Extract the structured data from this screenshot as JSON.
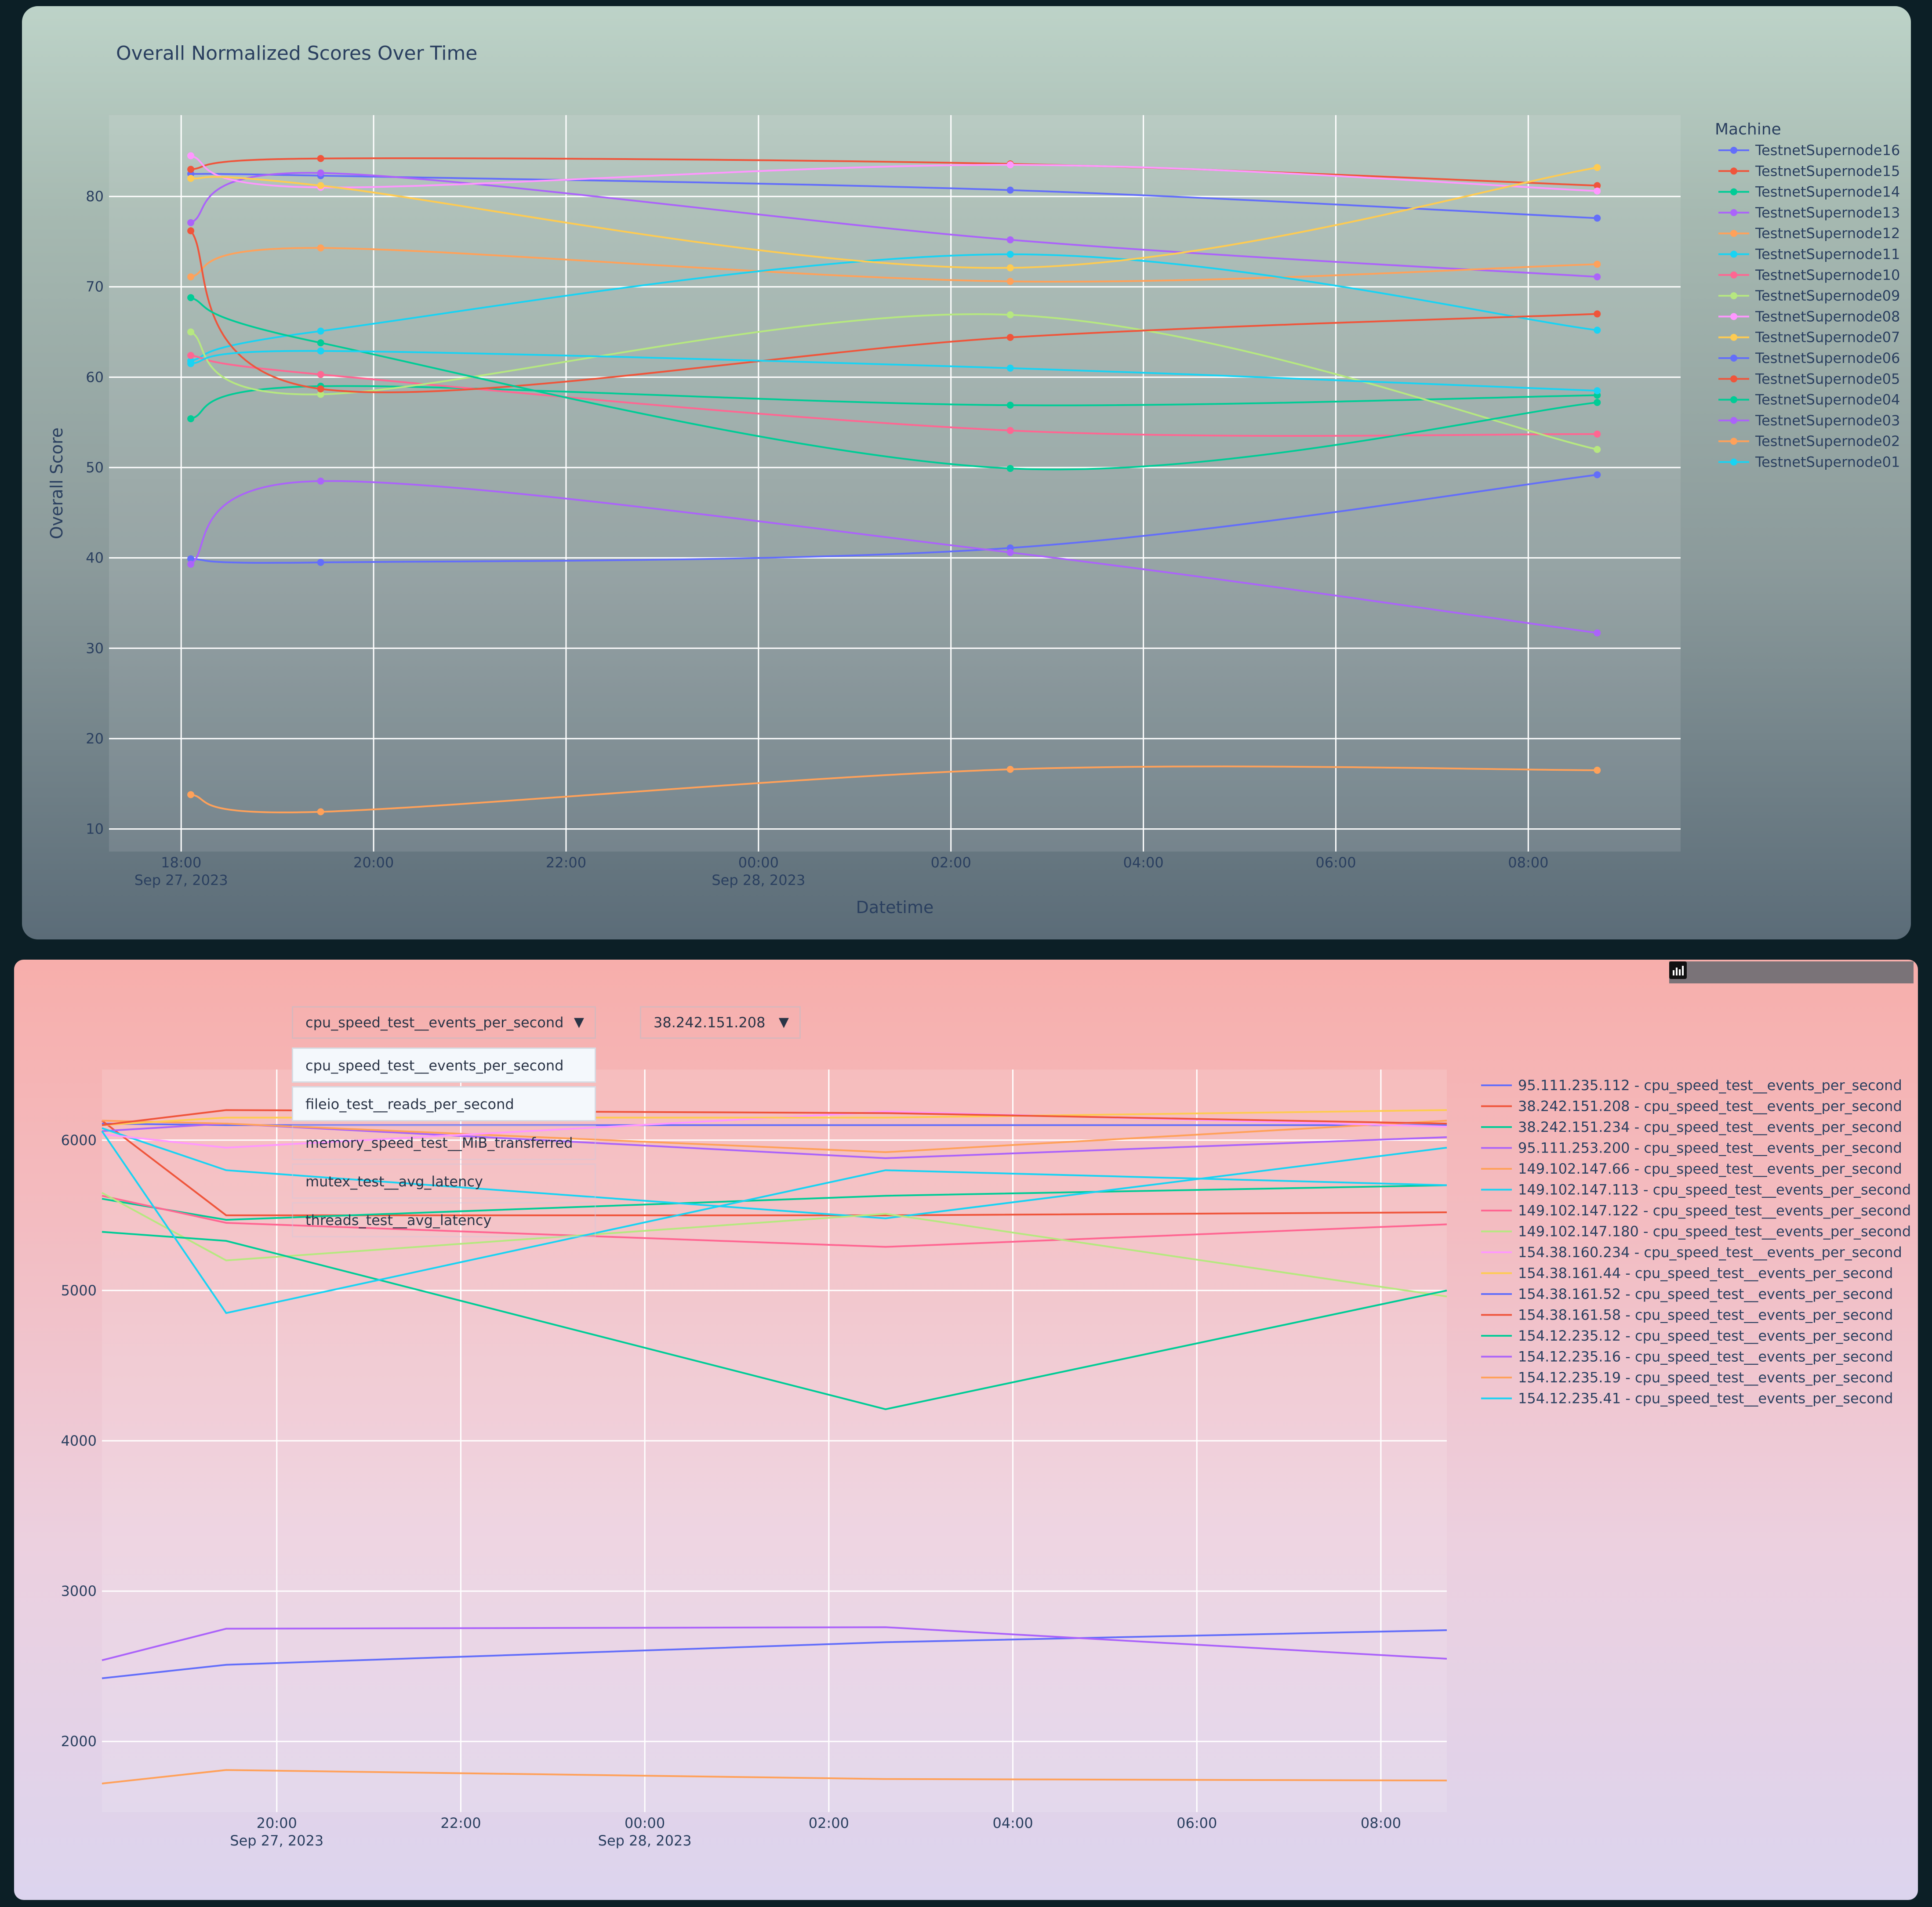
{
  "top_chart": {
    "legend_title": "Machine",
    "chart_data": {
      "type": "line",
      "title": "Overall Normalized Scores Over Time",
      "xlabel": "Datetime",
      "ylabel": "Overall Score",
      "x_ticks": [
        {
          "label": "18:00",
          "sub": "Sep 27, 2023",
          "t": "2023-09-27 18:00"
        },
        {
          "label": "20:00",
          "sub": "",
          "t": "2023-09-27 20:00"
        },
        {
          "label": "22:00",
          "sub": "",
          "t": "2023-09-27 22:00"
        },
        {
          "label": "00:00",
          "sub": "Sep 28, 2023",
          "t": "2023-09-28 00:00"
        },
        {
          "label": "02:00",
          "sub": "",
          "t": "2023-09-28 02:00"
        },
        {
          "label": "04:00",
          "sub": "",
          "t": "2023-09-28 04:00"
        },
        {
          "label": "06:00",
          "sub": "",
          "t": "2023-09-28 06:00"
        },
        {
          "label": "08:00",
          "sub": "",
          "t": "2023-09-28 08:00"
        }
      ],
      "y_ticks": [
        10,
        20,
        30,
        40,
        50,
        60,
        70,
        80
      ],
      "xlim": [
        "2023-09-27 17:15",
        "2023-09-28 09:35"
      ],
      "ylim": [
        7.5,
        89
      ],
      "x": [
        "2023-09-27 18:06",
        "2023-09-27 19:27",
        "2023-09-28 02:37",
        "2023-09-28 08:43"
      ],
      "grid": true,
      "legend_position": "right",
      "series": [
        {
          "name": "TestnetSupernode16",
          "color": "#636efa",
          "values": [
            82.5,
            82.3,
            80.7,
            77.6
          ]
        },
        {
          "name": "TestnetSupernode15",
          "color": "#ef553b",
          "values": [
            83.0,
            84.2,
            83.6,
            81.2
          ]
        },
        {
          "name": "TestnetSupernode14",
          "color": "#00cc96",
          "values": [
            55.4,
            59.0,
            56.9,
            58.0
          ]
        },
        {
          "name": "TestnetSupernode13",
          "color": "#ab63fa",
          "values": [
            77.1,
            82.6,
            75.2,
            71.1
          ]
        },
        {
          "name": "TestnetSupernode12",
          "color": "#ffa15a",
          "values": [
            71.1,
            74.3,
            70.6,
            72.5
          ]
        },
        {
          "name": "TestnetSupernode11",
          "color": "#19d3f3",
          "values": [
            61.8,
            65.1,
            73.6,
            65.2
          ]
        },
        {
          "name": "TestnetSupernode10",
          "color": "#ff6692",
          "values": [
            62.4,
            60.3,
            54.1,
            53.7
          ]
        },
        {
          "name": "TestnetSupernode09",
          "color": "#b6e880",
          "values": [
            65.0,
            58.1,
            66.9,
            52.0
          ]
        },
        {
          "name": "TestnetSupernode08",
          "color": "#ff97ff",
          "values": [
            84.5,
            81.0,
            83.5,
            80.6
          ]
        },
        {
          "name": "TestnetSupernode07",
          "color": "#fecb52",
          "values": [
            82.0,
            81.2,
            72.1,
            83.2
          ]
        },
        {
          "name": "TestnetSupernode06",
          "color": "#636efa",
          "values": [
            39.9,
            39.5,
            41.1,
            49.2
          ]
        },
        {
          "name": "TestnetSupernode05",
          "color": "#ef553b",
          "values": [
            76.2,
            58.7,
            64.4,
            67.0
          ]
        },
        {
          "name": "TestnetSupernode04",
          "color": "#00cc96",
          "values": [
            68.8,
            63.8,
            49.9,
            57.2
          ]
        },
        {
          "name": "TestnetSupernode03",
          "color": "#ab63fa",
          "values": [
            39.3,
            48.5,
            40.6,
            31.7
          ]
        },
        {
          "name": "TestnetSupernode02",
          "color": "#ffa15a",
          "values": [
            13.8,
            11.9,
            16.6,
            16.5
          ]
        },
        {
          "name": "TestnetSupernode01",
          "color": "#19d3f3",
          "values": [
            61.5,
            62.9,
            61.0,
            58.5
          ]
        }
      ]
    }
  },
  "bottom_chart": {
    "metric_dropdown": {
      "selected": "cpu_speed_test__events_per_second",
      "arrow": "▼"
    },
    "ip_dropdown": {
      "selected": "38.242.151.208",
      "arrow": "▼"
    },
    "metric_options": [
      "cpu_speed_test__events_per_second",
      "fileio_test__reads_per_second",
      "memory_speed_test__MiB_transferred",
      "mutex_test__avg_latency",
      "threads_test__avg_latency"
    ],
    "modebar_icons": [
      "camera-icon",
      "zoom-icon",
      "pan-icon",
      "zoom-in-icon",
      "zoom-out-icon",
      "autoscale-icon",
      "home-icon",
      "plotly-logo-icon"
    ],
    "chart_data": {
      "type": "line",
      "title": "",
      "xlabel": "",
      "ylabel": "",
      "x_ticks": [
        {
          "label": "20:00",
          "sub": "Sep 27, 2023",
          "t": "2023-09-27 20:00"
        },
        {
          "label": "22:00",
          "sub": "",
          "t": "2023-09-27 22:00"
        },
        {
          "label": "00:00",
          "sub": "Sep 28, 2023",
          "t": "2023-09-28 00:00"
        },
        {
          "label": "02:00",
          "sub": "",
          "t": "2023-09-28 02:00"
        },
        {
          "label": "04:00",
          "sub": "",
          "t": "2023-09-28 04:00"
        },
        {
          "label": "06:00",
          "sub": "",
          "t": "2023-09-28 06:00"
        },
        {
          "label": "08:00",
          "sub": "",
          "t": "2023-09-28 08:00"
        }
      ],
      "y_ticks": [
        2000,
        3000,
        4000,
        5000,
        6000
      ],
      "xlim": [
        "2023-09-27 18:06",
        "2023-09-28 08:43"
      ],
      "ylim": [
        1530,
        6470
      ],
      "x": [
        "2023-09-27 18:06",
        "2023-09-27 19:27",
        "2023-09-28 02:37",
        "2023-09-28 08:43"
      ],
      "grid": true,
      "legend_position": "right",
      "series": [
        {
          "name": "95.111.235.112 - cpu_speed_test__events_per_second",
          "color": "#636efa",
          "values": [
            6110,
            6100,
            6100,
            6100
          ]
        },
        {
          "name": "38.242.151.208 - cpu_speed_test__events_per_second",
          "color": "#ef553b",
          "values": [
            6130,
            5500,
            5500,
            5520
          ]
        },
        {
          "name": "38.242.151.234 - cpu_speed_test__events_per_second",
          "color": "#00cc96",
          "values": [
            5610,
            5470,
            5630,
            5700
          ]
        },
        {
          "name": "95.111.253.200 - cpu_speed_test__events_per_second",
          "color": "#ab63fa",
          "values": [
            6060,
            6110,
            5880,
            6020
          ]
        },
        {
          "name": "149.102.147.66 - cpu_speed_test__events_per_second",
          "color": "#ffa15a",
          "values": [
            6130,
            6110,
            5920,
            6130
          ]
        },
        {
          "name": "149.102.147.113 - cpu_speed_test__events_per_second",
          "color": "#19d3f3",
          "values": [
            6080,
            5800,
            5480,
            5950
          ]
        },
        {
          "name": "149.102.147.122 - cpu_speed_test__events_per_second",
          "color": "#ff6692",
          "values": [
            5630,
            5450,
            5290,
            5440
          ]
        },
        {
          "name": "149.102.147.180 - cpu_speed_test__events_per_second",
          "color": "#b6e880",
          "values": [
            5650,
            5200,
            5510,
            4960
          ]
        },
        {
          "name": "154.38.160.234 - cpu_speed_test__events_per_second",
          "color": "#ff97ff",
          "values": [
            6040,
            5950,
            6190,
            6090
          ]
        },
        {
          "name": "154.38.161.44 - cpu_speed_test__events_per_second",
          "color": "#fecb52",
          "values": [
            6100,
            6150,
            6150,
            6200
          ]
        },
        {
          "name": "154.38.161.52 - cpu_speed_test__events_per_second",
          "color": "#636efa",
          "values": [
            2420,
            2510,
            2660,
            2740
          ]
        },
        {
          "name": "154.38.161.58 - cpu_speed_test__events_per_second",
          "color": "#ef553b",
          "values": [
            6100,
            6200,
            6180,
            6110
          ]
        },
        {
          "name": "154.12.235.12 - cpu_speed_test__events_per_second",
          "color": "#00cc96",
          "values": [
            5390,
            5330,
            4210,
            5000
          ]
        },
        {
          "name": "154.12.235.16 - cpu_speed_test__events_per_second",
          "color": "#ab63fa",
          "values": [
            2540,
            2750,
            2760,
            2550
          ]
        },
        {
          "name": "154.12.235.19 - cpu_speed_test__events_per_second",
          "color": "#ffa15a",
          "values": [
            1720,
            1810,
            1750,
            1740
          ]
        },
        {
          "name": "154.12.235.41 - cpu_speed_test__events_per_second",
          "color": "#19d3f3",
          "values": [
            6060,
            4850,
            5800,
            5700
          ]
        }
      ]
    }
  }
}
